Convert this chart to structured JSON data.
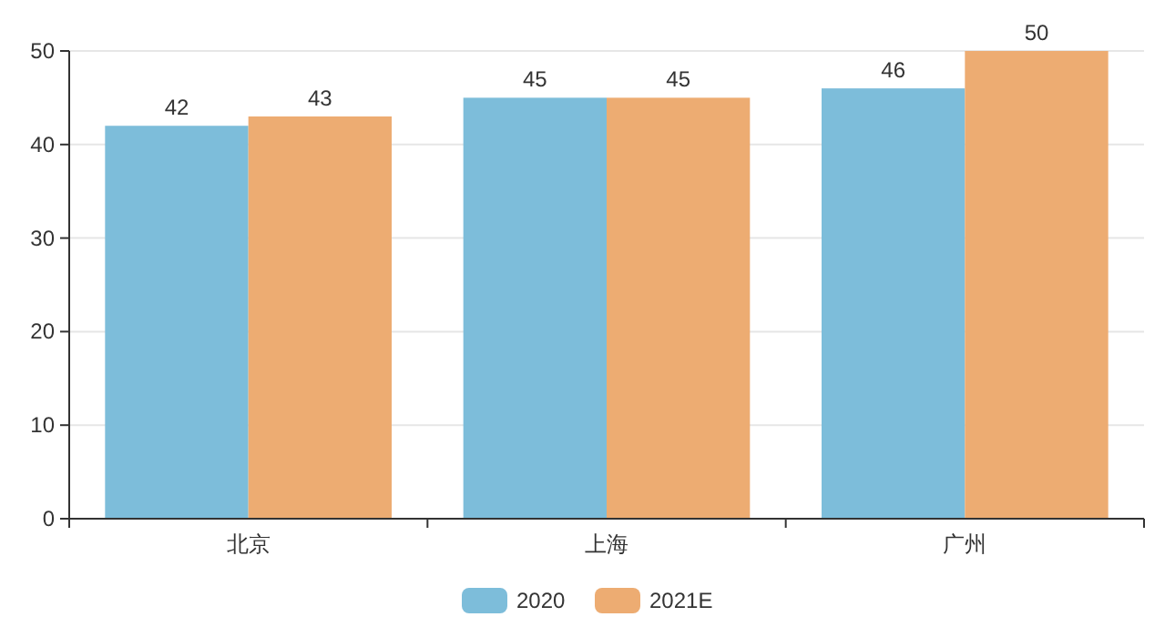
{
  "chart_data": {
    "type": "bar",
    "categories": [
      "北京",
      "上海",
      "广州"
    ],
    "series": [
      {
        "name": "2020",
        "color": "#7dbdda",
        "values": [
          42,
          45,
          46
        ]
      },
      {
        "name": "2021E",
        "color": "#edac72",
        "values": [
          43,
          45,
          50
        ]
      }
    ],
    "ylim": [
      0,
      50
    ],
    "yticks": [
      0,
      10,
      20,
      30,
      40,
      50
    ],
    "grid": "y",
    "legend": "bottom",
    "data_labels": true
  }
}
